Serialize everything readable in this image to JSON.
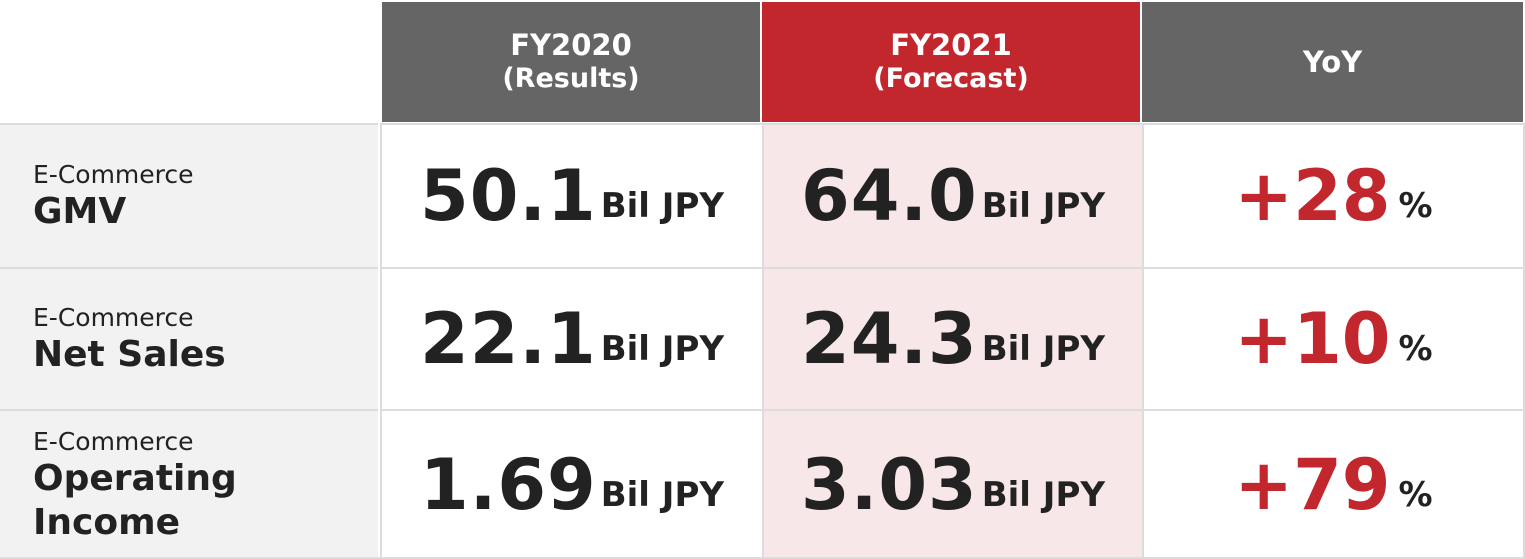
{
  "chart_data": {
    "type": "table",
    "columns": [
      {
        "label": "FY2020",
        "sub": "(Results)"
      },
      {
        "label": "FY2021",
        "sub": "(Forecast)"
      },
      {
        "label": "YoY",
        "sub": ""
      }
    ],
    "rows": [
      {
        "label_small": "E-Commerce",
        "label_big": "GMV",
        "fy2020": "50.1",
        "fy2021": "64.0",
        "unit": "Bil JPY",
        "yoy": "+28",
        "yoy_unit": "%"
      },
      {
        "label_small": "E-Commerce",
        "label_big": "Net Sales",
        "fy2020": "22.1",
        "fy2021": "24.3",
        "unit": "Bil JPY",
        "yoy": "+10",
        "yoy_unit": "%"
      },
      {
        "label_small": "E-Commerce",
        "label_big": "Operating Income",
        "fy2020": "1.69",
        "fy2021": "3.03",
        "unit": "Bil JPY",
        "yoy": "+79",
        "yoy_unit": "%"
      }
    ],
    "colors": {
      "header_gray": "#656565",
      "header_red": "#c2272d",
      "highlight_bg": "#f8e7e8",
      "label_bg": "#f2f2f2"
    }
  }
}
